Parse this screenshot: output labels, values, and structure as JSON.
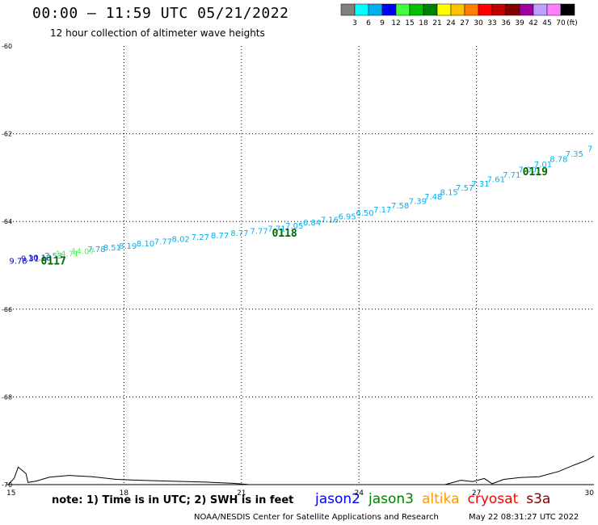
{
  "title": "00:00 – 11:59 UTC 05/21/2022",
  "subtitle": "12 hour collection of altimeter wave heights",
  "colorbar": {
    "colors": [
      "#808080",
      "#00ffff",
      "#00b0f0",
      "#0000ff",
      "#40ff40",
      "#00c000",
      "#008000",
      "#ffff00",
      "#ffc000",
      "#ff8000",
      "#ff0000",
      "#c00000",
      "#800000",
      "#a000a0",
      "#c0a0ff",
      "#ff80ff",
      "#000000"
    ],
    "labels": [
      "3",
      "6",
      "9",
      "12",
      "15",
      "18",
      "21",
      "24",
      "27",
      "30",
      "33",
      "36",
      "39",
      "42",
      "45",
      "70"
    ],
    "unit": "(ft)"
  },
  "note": "note: 1) Time is in UTC; 2) SWH is in feet",
  "legend": [
    {
      "name": "jason2",
      "color": "#0000ff"
    },
    {
      "name": "jason3",
      "color": "#008000"
    },
    {
      "name": "altika",
      "color": "#ff9900"
    },
    {
      "name": "cryosat",
      "color": "#ff0000"
    },
    {
      "name": "s3a",
      "color": "#800000"
    }
  ],
  "credit": "NOAA/NESDIS Center for Satellite Applications and Research",
  "timestamp": "May 22 08:31:27 UTC 2022",
  "chart_data": {
    "type": "scatter",
    "xlim": [
      15,
      30
    ],
    "ylim": [
      -70,
      -60
    ],
    "x_ticks": [
      "15",
      "18",
      "21",
      "24",
      "27",
      "30"
    ],
    "y_ticks": [
      "-60",
      "-62",
      "-64",
      "-66",
      "-68",
      "-70"
    ],
    "grid": true,
    "points": [
      {
        "x": 15.3,
        "y": -64.96,
        "label": "9.78",
        "color": "#0000cc"
      },
      {
        "x": 15.6,
        "y": -64.91,
        "label": "9.31",
        "color": "#0000cc"
      },
      {
        "x": 15.85,
        "y": -64.89,
        "label": "10.18",
        "color": "#0000cc"
      },
      {
        "x": 16.2,
        "y": -64.84,
        "label": "7.53",
        "color": "#00b0f0"
      },
      {
        "x": 16.55,
        "y": -64.8,
        "label": "14.71",
        "color": "#40ff40"
      },
      {
        "x": 16.95,
        "y": -64.74,
        "label": "14.07",
        "color": "#40ff40"
      },
      {
        "x": 17.3,
        "y": -64.7,
        "label": "7.78",
        "color": "#00b0f0"
      },
      {
        "x": 17.7,
        "y": -64.66,
        "label": "8.51",
        "color": "#00b0f0"
      },
      {
        "x": 18.1,
        "y": -64.62,
        "label": "8.19",
        "color": "#00b0f0"
      },
      {
        "x": 18.55,
        "y": -64.57,
        "label": "8.10",
        "color": "#00b0f0"
      },
      {
        "x": 19.0,
        "y": -64.52,
        "label": "7.77",
        "color": "#00b0f0"
      },
      {
        "x": 19.45,
        "y": -64.47,
        "label": "8.02",
        "color": "#00b0f0"
      },
      {
        "x": 19.95,
        "y": -64.42,
        "label": "7.27",
        "color": "#00b0f0"
      },
      {
        "x": 20.45,
        "y": -64.38,
        "label": "8.77",
        "color": "#00b0f0"
      },
      {
        "x": 20.95,
        "y": -64.33,
        "label": "8.77",
        "color": "#00b0f0"
      },
      {
        "x": 21.45,
        "y": -64.28,
        "label": "7.77",
        "color": "#00b0f0"
      },
      {
        "x": 21.9,
        "y": -64.23,
        "label": "7.71",
        "color": "#00b0f0"
      },
      {
        "x": 22.35,
        "y": -64.16,
        "label": "7.05",
        "color": "#00b0f0"
      },
      {
        "x": 22.8,
        "y": -64.09,
        "label": "6.84",
        "color": "#00b0f0"
      },
      {
        "x": 23.25,
        "y": -64.02,
        "label": "7.16",
        "color": "#00b0f0"
      },
      {
        "x": 23.7,
        "y": -63.95,
        "label": "6.95",
        "color": "#00b0f0"
      },
      {
        "x": 24.15,
        "y": -63.87,
        "label": "6.50",
        "color": "#00b0f0"
      },
      {
        "x": 24.6,
        "y": -63.79,
        "label": "7.17",
        "color": "#00b0f0"
      },
      {
        "x": 25.05,
        "y": -63.7,
        "label": "7.58",
        "color": "#00b0f0"
      },
      {
        "x": 25.5,
        "y": -63.6,
        "label": "7.39",
        "color": "#00b0f0"
      },
      {
        "x": 25.9,
        "y": -63.5,
        "label": "7.48",
        "color": "#00b0f0"
      },
      {
        "x": 26.3,
        "y": -63.4,
        "label": "8.15",
        "color": "#00b0f0"
      },
      {
        "x": 26.7,
        "y": -63.3,
        "label": "7.57",
        "color": "#00b0f0"
      },
      {
        "x": 27.1,
        "y": -63.2,
        "label": "7.31",
        "color": "#00b0f0"
      },
      {
        "x": 27.5,
        "y": -63.1,
        "label": "7.61",
        "color": "#00b0f0"
      },
      {
        "x": 27.9,
        "y": -63.0,
        "label": "7.71",
        "color": "#00b0f0"
      },
      {
        "x": 28.3,
        "y": -62.88,
        "label": "7.00",
        "color": "#00b0f0"
      },
      {
        "x": 28.7,
        "y": -62.76,
        "label": "7.01",
        "color": "#00b0f0"
      },
      {
        "x": 29.1,
        "y": -62.64,
        "label": "8.78",
        "color": "#00b0f0"
      },
      {
        "x": 29.5,
        "y": -62.52,
        "label": "7.35",
        "color": "#00b0f0"
      },
      {
        "x": 29.9,
        "y": -62.4,
        "label": "7",
        "color": "#00b0f0"
      }
    ],
    "pass_labels": [
      {
        "x": 16.2,
        "y": -64.98,
        "label": "0117",
        "color": "#006600"
      },
      {
        "x": 22.1,
        "y": -64.35,
        "label": "0118",
        "color": "#006600"
      },
      {
        "x": 28.5,
        "y": -62.95,
        "label": "0119",
        "color": "#006600"
      }
    ],
    "coastline": [
      [
        [
          15.05,
          -70.0
        ],
        [
          15.2,
          -69.85
        ],
        [
          15.3,
          -69.6
        ],
        [
          15.5,
          -69.75
        ],
        [
          15.55,
          -69.95
        ],
        [
          15.75,
          -69.92
        ],
        [
          16.1,
          -69.83
        ],
        [
          16.6,
          -69.79
        ],
        [
          17.2,
          -69.82
        ],
        [
          17.8,
          -69.88
        ],
        [
          18.4,
          -69.9
        ],
        [
          19.2,
          -69.92
        ],
        [
          20.0,
          -69.94
        ],
        [
          20.8,
          -69.97
        ],
        [
          21.2,
          -70.0
        ]
      ],
      [
        [
          26.2,
          -70.0
        ],
        [
          26.6,
          -69.9
        ],
        [
          26.9,
          -69.93
        ],
        [
          27.2,
          -69.86
        ],
        [
          27.4,
          -69.98
        ],
        [
          27.7,
          -69.88
        ],
        [
          28.1,
          -69.84
        ],
        [
          28.6,
          -69.82
        ],
        [
          29.1,
          -69.7
        ],
        [
          29.5,
          -69.55
        ],
        [
          29.8,
          -69.45
        ],
        [
          30.0,
          -69.35
        ]
      ]
    ]
  }
}
